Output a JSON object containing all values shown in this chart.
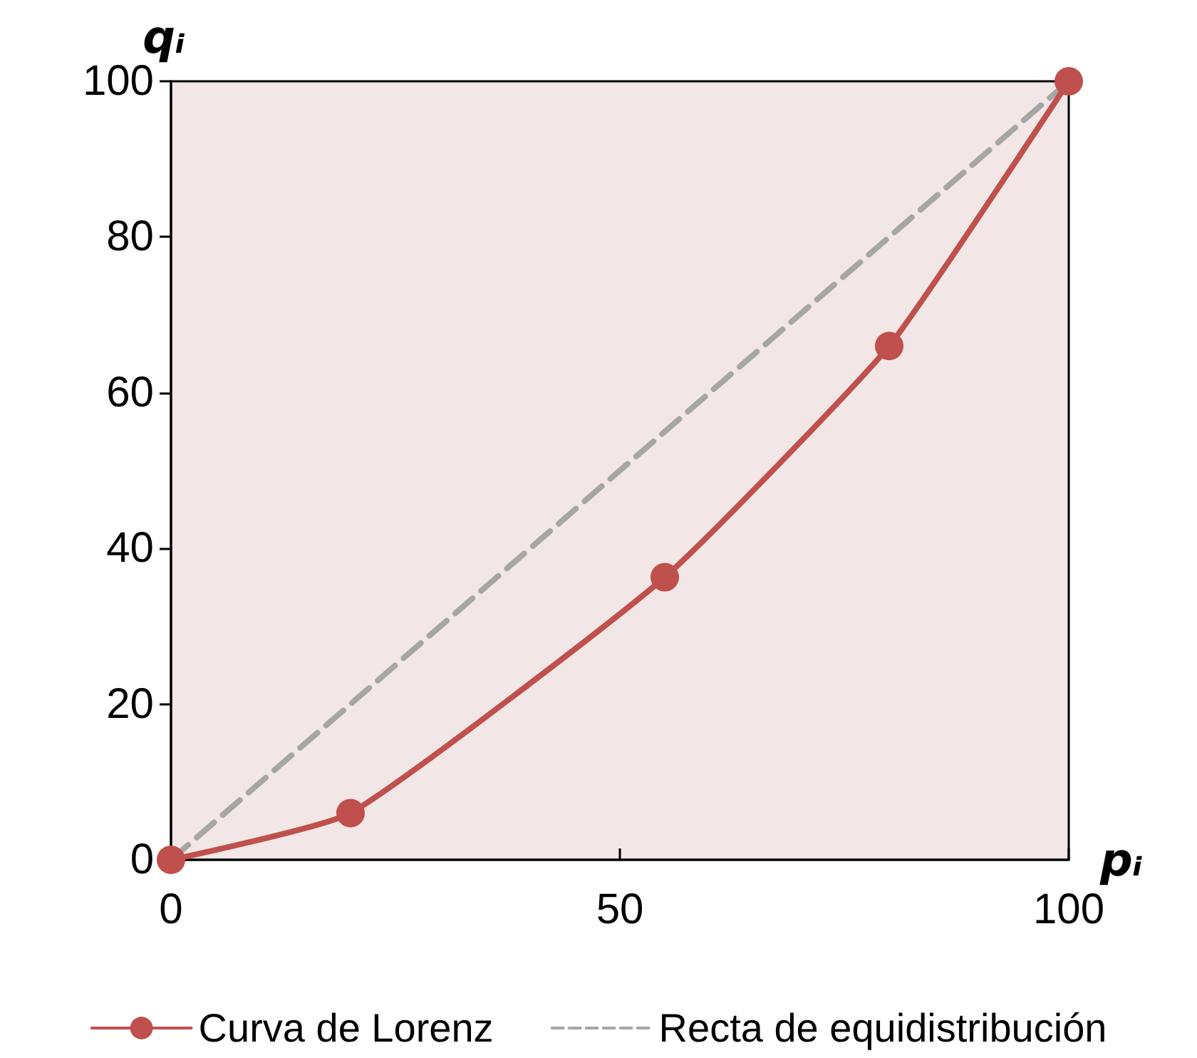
{
  "chart_data": {
    "type": "line",
    "xlabel": "pᵢ",
    "ylabel": "qᵢ",
    "xlim": [
      0,
      100
    ],
    "xticks": [
      0,
      50,
      100
    ],
    "ylim": [
      0,
      100
    ],
    "yticks": [
      0,
      20,
      40,
      60,
      80,
      100
    ],
    "grid": false,
    "legend": "bottom",
    "series": [
      {
        "name": "Curva de Lorenz",
        "color": "#c0504d",
        "x": [
          0,
          20,
          55,
          80,
          100
        ],
        "values": [
          0,
          6,
          36.3,
          66,
          100
        ],
        "marker": "circle",
        "line_style": "solid"
      },
      {
        "name": "Recta de equidistribución",
        "color": "#a6a6a6",
        "x": [
          0,
          100
        ],
        "values": [
          0,
          100
        ],
        "marker": "none",
        "line_style": "dashed"
      }
    ]
  }
}
